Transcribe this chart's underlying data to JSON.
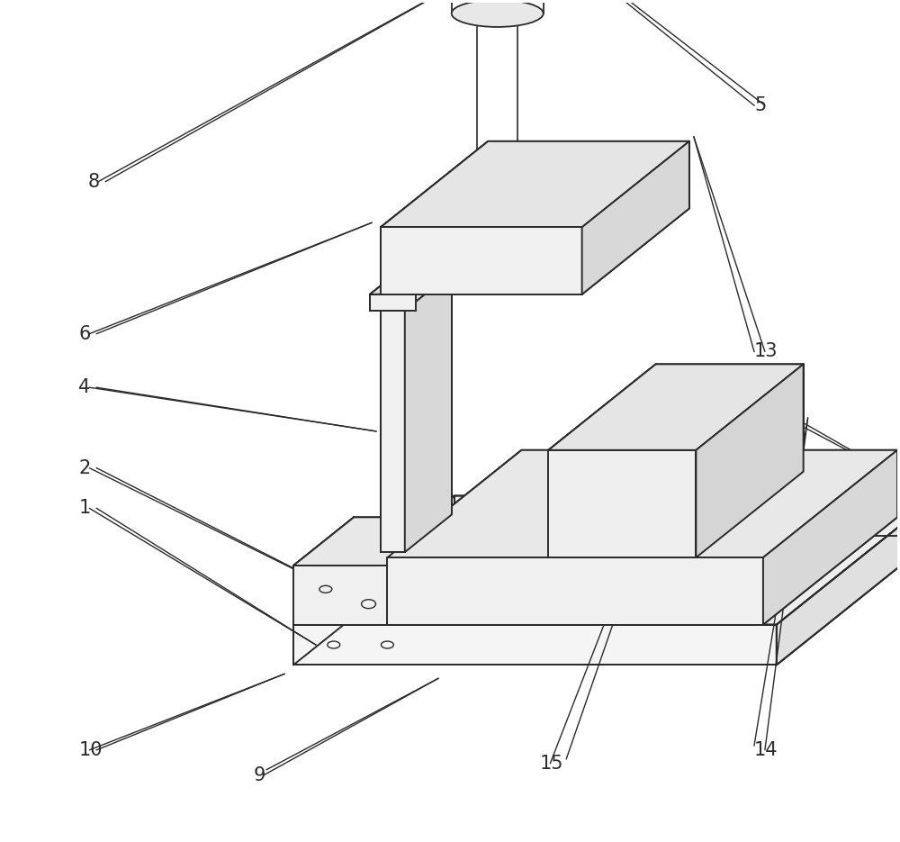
{
  "bg_color": "#ffffff",
  "line_color": "#2a2a2a",
  "line_width": 1.4,
  "label_fontsize": 15,
  "figsize": [
    10.0,
    9.35
  ],
  "dpi": 100
}
